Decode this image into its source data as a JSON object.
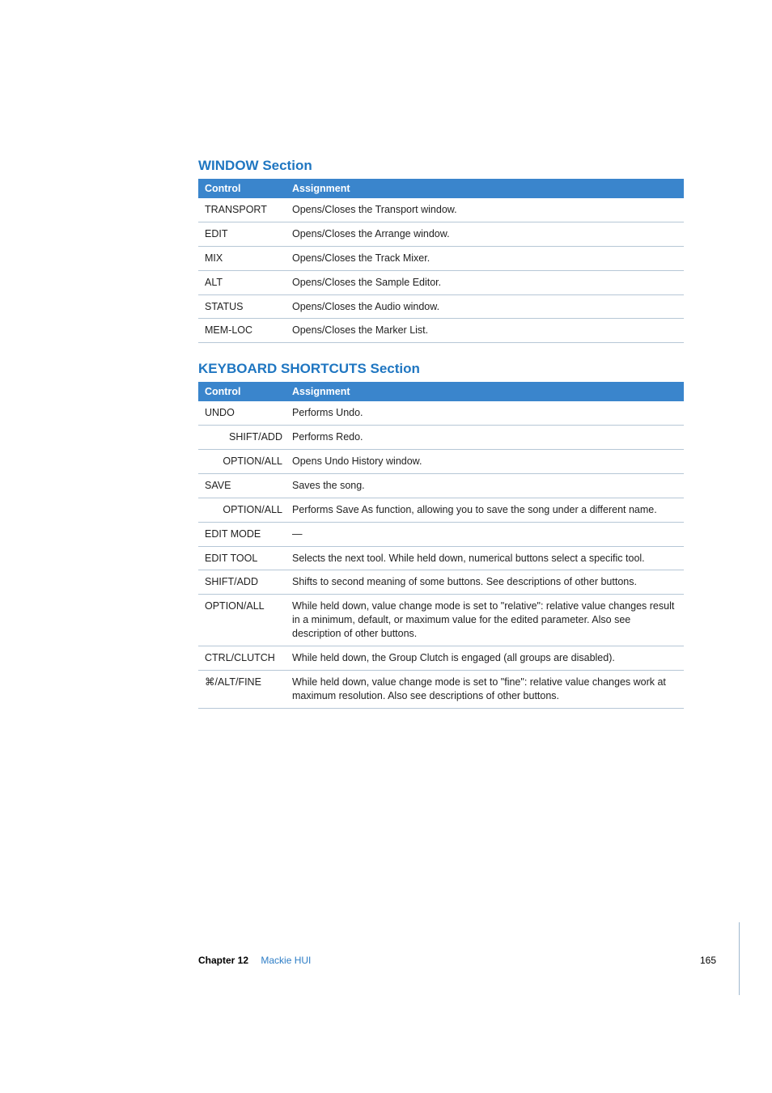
{
  "sections": [
    {
      "title": "WINDOW Section",
      "header": {
        "col1": "Control",
        "col2": "Assignment"
      },
      "rows": [
        {
          "control": "TRANSPORT",
          "indent": false,
          "assignment": "Opens/Closes the Transport window."
        },
        {
          "control": "EDIT",
          "indent": false,
          "assignment": "Opens/Closes the Arrange window."
        },
        {
          "control": "MIX",
          "indent": false,
          "assignment": "Opens/Closes the Track Mixer."
        },
        {
          "control": "ALT",
          "indent": false,
          "assignment": "Opens/Closes the Sample Editor."
        },
        {
          "control": "STATUS",
          "indent": false,
          "assignment": "Opens/Closes the Audio window."
        },
        {
          "control": "MEM-LOC",
          "indent": false,
          "assignment": "Opens/Closes the Marker List."
        }
      ]
    },
    {
      "title": "KEYBOARD SHORTCUTS Section",
      "header": {
        "col1": "Control",
        "col2": "Assignment"
      },
      "rows": [
        {
          "control": "UNDO",
          "indent": false,
          "assignment": "Performs Undo."
        },
        {
          "control": "SHIFT/ADD",
          "indent": true,
          "assignment": "Performs Redo."
        },
        {
          "control": "OPTION/ALL",
          "indent": true,
          "assignment": "Opens Undo History window."
        },
        {
          "control": "SAVE",
          "indent": false,
          "assignment": "Saves the song."
        },
        {
          "control": "OPTION/ALL",
          "indent": true,
          "assignment": "Performs Save As function, allowing you to save the song under a different name."
        },
        {
          "control": "EDIT MODE",
          "indent": false,
          "assignment": "—"
        },
        {
          "control": "EDIT TOOL",
          "indent": false,
          "assignment": "Selects the next tool. While held down, numerical buttons select a specific tool."
        },
        {
          "control": "SHIFT/ADD",
          "indent": false,
          "assignment": "Shifts to second meaning of some buttons. See descriptions of other buttons."
        },
        {
          "control": "OPTION/ALL",
          "indent": false,
          "assignment": "While held down, value change mode is set to \"relative\":  relative value changes result in a minimum, default, or maximum value for the edited parameter. Also see description of other buttons."
        },
        {
          "control": "CTRL/CLUTCH",
          "indent": false,
          "assignment": "While held down, the Group Clutch is engaged (all groups are disabled)."
        },
        {
          "control": "⌘/ALT/FINE",
          "indent": false,
          "assignment": "While held down, value change mode is set to \"fine\":  relative value changes work at maximum resolution. Also see descriptions of other buttons."
        }
      ]
    }
  ],
  "footer": {
    "chapter_label": "Chapter 12",
    "chapter_name": "Mackie HUI",
    "page_number": "165"
  },
  "colors": {
    "heading": "#1f76c1",
    "th_bg": "#3a85cc",
    "th_fg": "#ffffff",
    "row_border": "#b6c7d6",
    "link": "#2d7dc6"
  }
}
